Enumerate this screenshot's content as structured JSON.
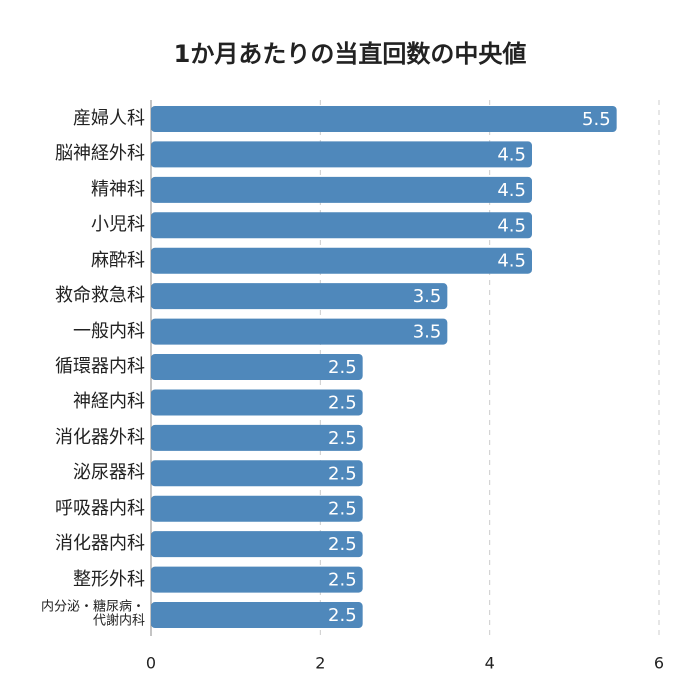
{
  "chart_data": {
    "type": "bar",
    "orientation": "horizontal",
    "title": "1か月あたりの当直回数の中央値",
    "categories": [
      "産婦人科",
      "脳神経外科",
      "精神科",
      "小児科",
      "麻酔科",
      "救命救急科",
      "一般内科",
      "循環器内科",
      "神経内科",
      "消化器外科",
      "泌尿器科",
      "呼吸器内科",
      "消化器内科",
      "整形外科",
      "内分泌・糖尿病・代謝内科"
    ],
    "values": [
      5.5,
      4.5,
      4.5,
      4.5,
      4.5,
      3.5,
      3.5,
      2.5,
      2.5,
      2.5,
      2.5,
      2.5,
      2.5,
      2.5,
      2.5
    ],
    "color": "#4f88bb",
    "xlim": [
      0,
      6
    ],
    "xticks": [
      0,
      2,
      4,
      6
    ],
    "grid": true
  }
}
